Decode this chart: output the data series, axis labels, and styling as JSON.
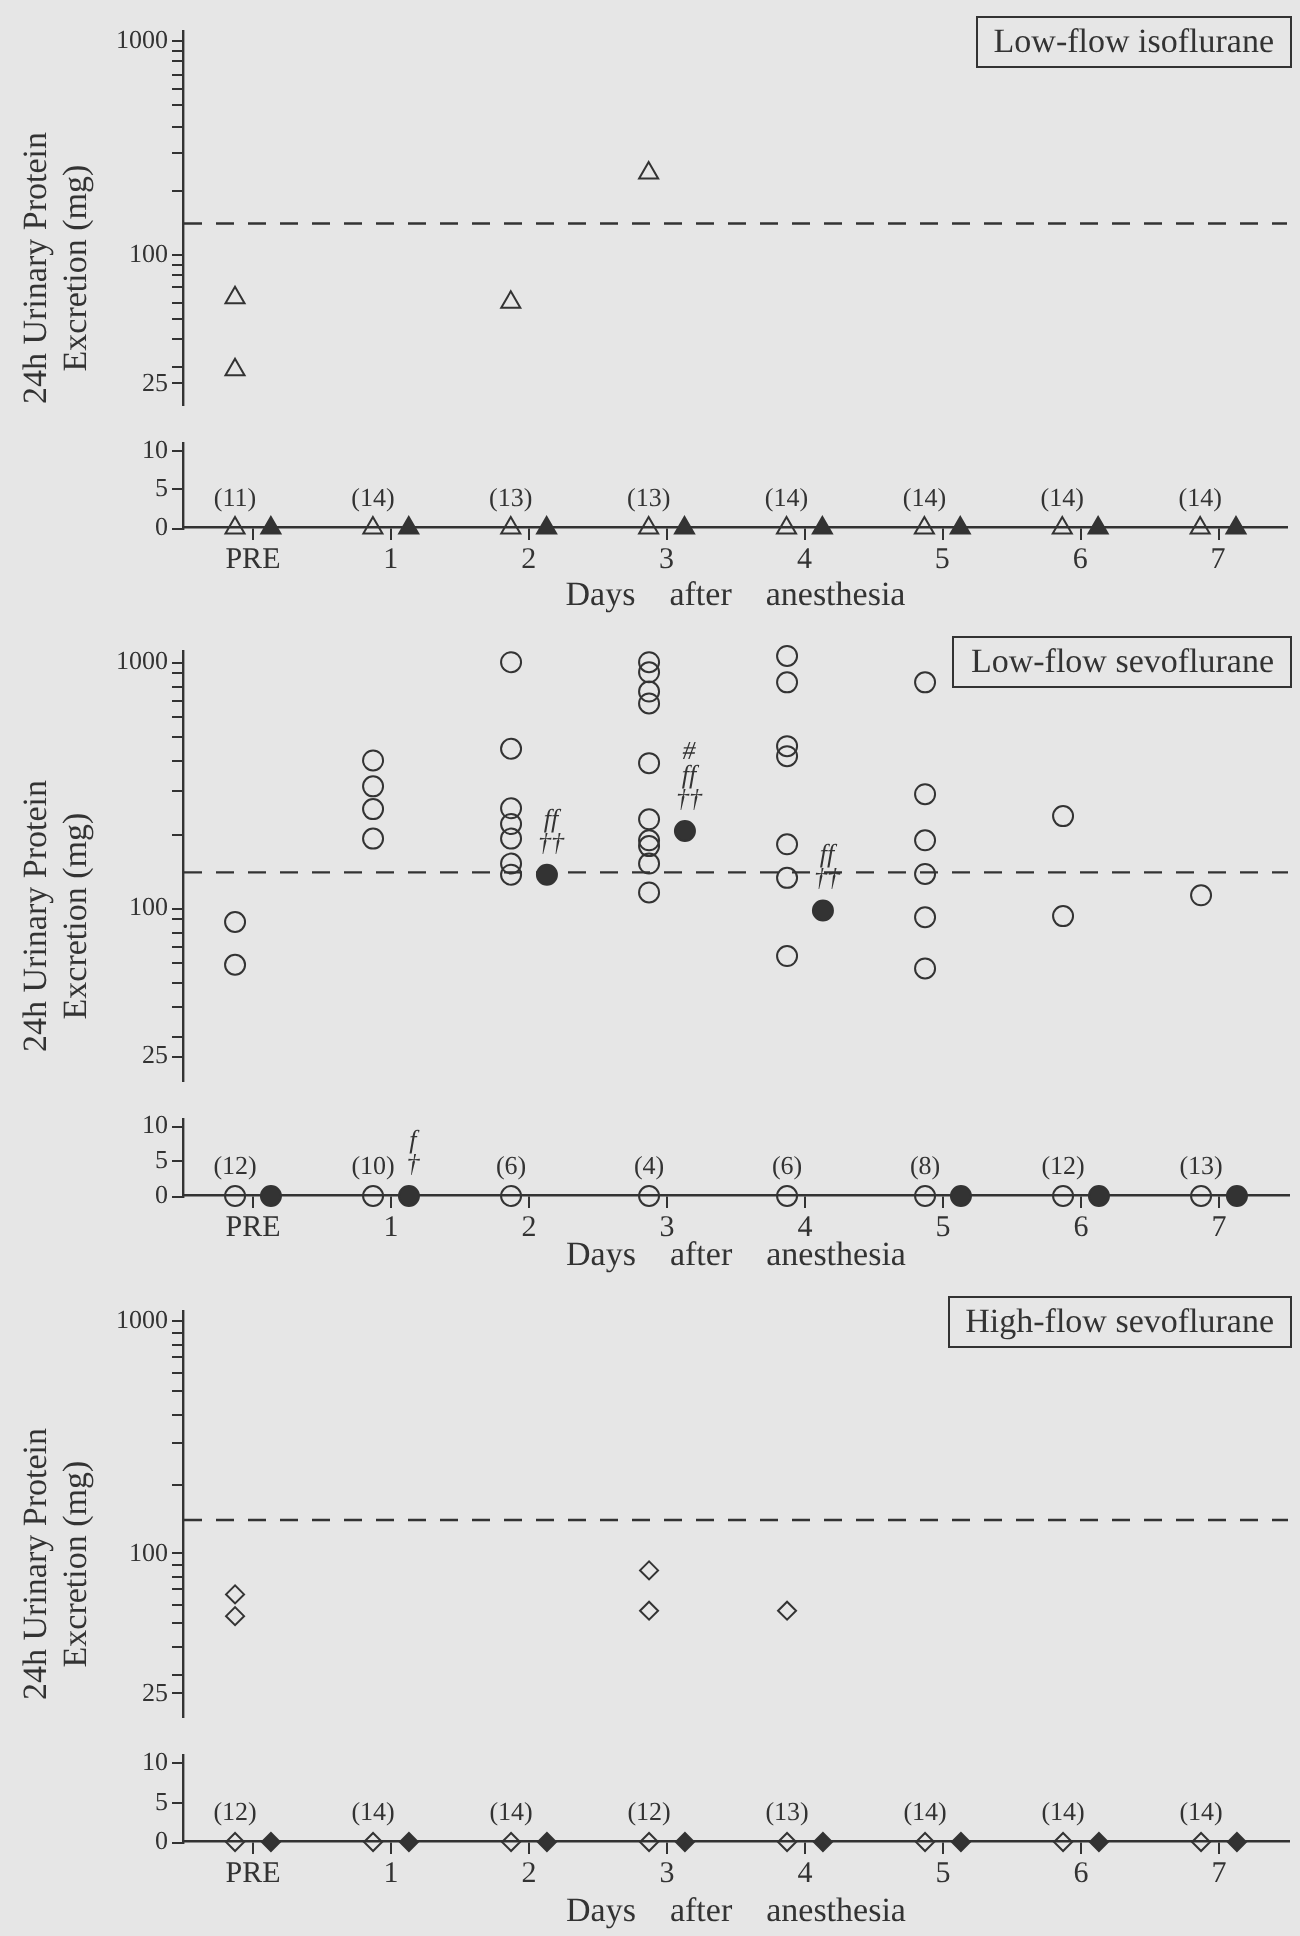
{
  "chart_data": [
    {
      "type": "scatter",
      "title": "Low-flow isoflurane",
      "ylabel": "24h Urinary Protein Excretion (mg)",
      "marker": "triangle",
      "log": true,
      "tick_labels": "y",
      "categories": [
        "PRE",
        "1",
        "2",
        "3",
        "4",
        "5",
        "6",
        "7"
      ],
      "ylim": [
        20,
        1100
      ],
      "yticks": [
        25,
        {
          "value": 30,
          "label": null
        },
        {
          "value": 40,
          "label": null
        },
        {
          "value": 50,
          "label": null
        },
        {
          "value": 60,
          "label": null
        },
        {
          "value": 70,
          "label": null
        },
        {
          "value": 80,
          "label": null
        },
        {
          "value": 90,
          "label": null
        },
        100,
        {
          "value": 200,
          "label": null
        },
        {
          "value": 300,
          "label": null
        },
        {
          "value": 400,
          "label": null
        },
        {
          "value": 500,
          "label": null
        },
        {
          "value": 600,
          "label": null
        },
        {
          "value": 700,
          "label": null
        },
        {
          "value": 800,
          "label": null
        },
        {
          "value": 900,
          "label": null
        },
        1000
      ],
      "ref_lines": [
        {
          "axis": "y",
          "value": 140,
          "line_style": "dashed"
        }
      ],
      "series": [
        {
          "color": "#333333",
          "x": [
            "PRE",
            "PRE",
            "2",
            "3"
          ],
          "values": [
            63,
            29,
            60,
            241
          ]
        }
      ]
    },
    {
      "type": "scatter",
      "xlabel": "Days    after    anesthesia",
      "marker": "triangle",
      "categories": [
        "PRE",
        "1",
        "2",
        "3",
        "4",
        "5",
        "6",
        "7"
      ],
      "ylim": [
        0,
        11
      ],
      "yticks": [
        0,
        5,
        10
      ],
      "series": [
        {
          "color": "#333333",
          "values": [
            0,
            0,
            0,
            0,
            0,
            0,
            0,
            0
          ]
        },
        {
          "color": "#333333",
          "values": [
            0,
            0,
            0,
            0,
            0,
            0,
            0,
            0
          ]
        }
      ],
      "annotations": [
        {
          "text": "(11)",
          "x": "PRE",
          "y": 0
        },
        {
          "text": "(14)",
          "x": "1",
          "y": 0
        },
        {
          "text": "(13)",
          "x": "2",
          "y": 0
        },
        {
          "text": "(13)",
          "x": "3",
          "y": 0
        },
        {
          "text": "(14)",
          "x": "4",
          "y": 0
        },
        {
          "text": "(14)",
          "x": "5",
          "y": 0
        },
        {
          "text": "(14)",
          "x": "6",
          "y": 0
        },
        {
          "text": "(14)",
          "x": "7",
          "y": 0
        }
      ]
    },
    {
      "type": "scatter",
      "title": "Low-flow sevoflurane",
      "ylabel": "24h Urinary Protein Excretion (mg)",
      "marker": "circle",
      "log": true,
      "tick_labels": "y",
      "categories": [
        "PRE",
        "1",
        "2",
        "3",
        "4",
        "5",
        "6",
        "7"
      ],
      "ylim": [
        20,
        1100
      ],
      "yticks": [
        25,
        {
          "value": 30,
          "label": null
        },
        {
          "value": 40,
          "label": null
        },
        {
          "value": 50,
          "label": null
        },
        {
          "value": 60,
          "label": null
        },
        {
          "value": 70,
          "label": null
        },
        {
          "value": 80,
          "label": null
        },
        {
          "value": 90,
          "label": null
        },
        100,
        {
          "value": 200,
          "label": null
        },
        {
          "value": 300,
          "label": null
        },
        {
          "value": 400,
          "label": null
        },
        {
          "value": 500,
          "label": null
        },
        {
          "value": 600,
          "label": null
        },
        {
          "value": 700,
          "label": null
        },
        {
          "value": 800,
          "label": null
        },
        {
          "value": 900,
          "label": null
        },
        1000
      ],
      "ref_lines": [
        {
          "axis": "y",
          "value": 140,
          "line_style": "dashed"
        }
      ],
      "series": [
        {
          "color": "#333333",
          "x": [
            "PRE",
            "PRE",
            "1",
            "1",
            "1",
            "1",
            "2",
            "2",
            "2",
            "2",
            "2",
            "2",
            "2",
            "3",
            "3",
            "3",
            "3",
            "3",
            "3",
            "3",
            "3",
            "3",
            "3",
            "4",
            "4",
            "4",
            "4",
            "4",
            "4",
            "4",
            "5",
            "5",
            "5",
            "5",
            "5",
            "5",
            "6",
            "6",
            "7"
          ],
          "values": [
            88,
            59,
            399,
            313,
            253,
            192,
            1000,
            445,
            255,
            220,
            192,
            152,
            137,
            1000,
            910,
            760,
            680,
            389,
            230,
            189,
            179,
            152,
            116,
            1060,
            828,
            456,
            415,
            182,
            133,
            64,
            828,
            291,
            189,
            138,
            92,
            57,
            237,
            93,
            113
          ]
        },
        {
          "color": "#333333",
          "x": [
            "2",
            "3",
            "4"
          ],
          "values": [
            137,
            206,
            98
          ]
        }
      ],
      "annotations": [
        {
          "text": "ff\n††",
          "x": "2",
          "y": 137
        },
        {
          "text": "#\nff\n††",
          "x": "3",
          "y": 206
        },
        {
          "text": "ff\n††",
          "x": "4",
          "y": 98
        }
      ]
    },
    {
      "type": "scatter",
      "xlabel": "Days    after    anesthesia",
      "marker": "circle",
      "categories": [
        "PRE",
        "1",
        "2",
        "3",
        "4",
        "5",
        "6",
        "7"
      ],
      "ylim": [
        0,
        11
      ],
      "yticks": [
        0,
        5,
        10
      ],
      "series": [
        {
          "color": "#333333",
          "values": [
            0,
            0,
            0,
            0,
            0,
            0,
            0,
            0
          ]
        },
        {
          "color": "#333333",
          "x": [
            "PRE",
            "1",
            "5",
            "6",
            "7"
          ],
          "values": [
            0,
            0,
            0,
            0,
            0
          ]
        }
      ],
      "annotations": [
        {
          "text": "(12)",
          "x": "PRE",
          "y": 0
        },
        {
          "text": "(10)",
          "x": "1",
          "y": 0
        },
        {
          "text": "(6)",
          "x": "2",
          "y": 0
        },
        {
          "text": "(4)",
          "x": "3",
          "y": 0
        },
        {
          "text": "(6)",
          "x": "4",
          "y": 0
        },
        {
          "text": "(8)",
          "x": "5",
          "y": 0
        },
        {
          "text": "(12)",
          "x": "6",
          "y": 0
        },
        {
          "text": "(13)",
          "x": "7",
          "y": 0
        },
        {
          "text": "f\n†",
          "x": "1",
          "y": 0
        }
      ]
    },
    {
      "type": "scatter",
      "title": "High-flow sevoflurane",
      "ylabel": "24h Urinary Protein Excretion (mg)",
      "marker": "diamond",
      "log": true,
      "tick_labels": "y",
      "categories": [
        "PRE",
        "1",
        "2",
        "3",
        "4",
        "5",
        "6",
        "7"
      ],
      "ylim": [
        20,
        1100
      ],
      "yticks": [
        25,
        {
          "value": 30,
          "label": null
        },
        {
          "value": 40,
          "label": null
        },
        {
          "value": 50,
          "label": null
        },
        {
          "value": 60,
          "label": null
        },
        {
          "value": 70,
          "label": null
        },
        {
          "value": 80,
          "label": null
        },
        {
          "value": 90,
          "label": null
        },
        100,
        {
          "value": 200,
          "label": null
        },
        {
          "value": 300,
          "label": null
        },
        {
          "value": 400,
          "label": null
        },
        {
          "value": 500,
          "label": null
        },
        {
          "value": 600,
          "label": null
        },
        {
          "value": 700,
          "label": null
        },
        {
          "value": 800,
          "label": null
        },
        {
          "value": 900,
          "label": null
        },
        1000
      ],
      "ref_lines": [
        {
          "axis": "y",
          "value": 140,
          "line_style": "dashed"
        }
      ],
      "series": [
        {
          "color": "#333333",
          "x": [
            "PRE",
            "PRE",
            "3",
            "3",
            "4"
          ],
          "values": [
            67,
            54,
            85,
            57,
            57
          ]
        }
      ]
    },
    {
      "type": "scatter",
      "xlabel": "Days    after    anesthesia",
      "marker": "diamond",
      "categories": [
        "PRE",
        "1",
        "2",
        "3",
        "4",
        "5",
        "6",
        "7"
      ],
      "ylim": [
        0,
        11
      ],
      "yticks": [
        0,
        5,
        10
      ],
      "series": [
        {
          "color": "#333333",
          "values": [
            0,
            0,
            0,
            0,
            0,
            0,
            0,
            0
          ]
        },
        {
          "color": "#333333",
          "values": [
            0,
            0,
            0,
            0,
            0,
            0,
            0,
            0
          ]
        }
      ],
      "annotations": [
        {
          "text": "(12)",
          "x": "PRE",
          "y": 0
        },
        {
          "text": "(14)",
          "x": "1",
          "y": 0
        },
        {
          "text": "(14)",
          "x": "2",
          "y": 0
        },
        {
          "text": "(12)",
          "x": "3",
          "y": 0
        },
        {
          "text": "(13)",
          "x": "4",
          "y": 0
        },
        {
          "text": "(14)",
          "x": "5",
          "y": 0
        },
        {
          "text": "(14)",
          "x": "6",
          "y": 0
        },
        {
          "text": "(14)",
          "x": "7",
          "y": 0
        }
      ]
    }
  ]
}
